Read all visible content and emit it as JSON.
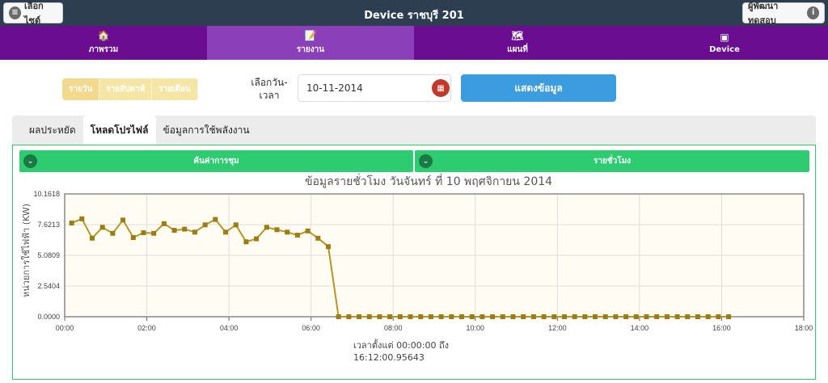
{
  "topbar": {
    "select_site_label": "เลือกไซต์",
    "title": "Device ราชบุรี 201",
    "user_label": "ผู้พัฒนา ทดสอบ"
  },
  "nav": {
    "items": [
      {
        "label": "ภาพรวม",
        "icon": "house-icon"
      },
      {
        "label": "รายงาน",
        "icon": "notepad-icon"
      },
      {
        "label": "แผนที่",
        "icon": "map-icon"
      },
      {
        "label": "Device",
        "icon": "chip-icon"
      }
    ],
    "active_index": 1
  },
  "period": {
    "options": [
      "รายวัน",
      "รายสัปดาห์",
      "รายเดือน"
    ]
  },
  "date_label": "เลือกวัน-เวลา",
  "date_value": "10-11-2014",
  "show_button": "แสดงข้อมูล",
  "tabs": [
    "ผลประหยัด",
    "โหลดโปรไฟล์",
    "ข้อมูลการใช้พลังงาน"
  ],
  "active_tab": 1,
  "accordion": {
    "left": "ค้นค่าการชุม",
    "right": "รายชั่วโมง"
  },
  "colors": {
    "topbar": "#2c3e50",
    "nav": "#6a0d91",
    "nav_active": "#8b3fb8",
    "accent_green": "#2ecc71",
    "series": "#b8961f",
    "button_blue": "#3b9de0"
  },
  "chart_data": {
    "type": "line",
    "title": "ข้อมูลรายชั่วโมง วันจันทร์ ที่ 10 พฤศจิกายน 2014",
    "ylabel": "หน่วยการใช้ไฟฟ้า (KW)",
    "xlabel_line1": "เวลาตั้งแต่ 00:00:00 ถึง",
    "xlabel_line2": "16:12:00.95643",
    "xlim": [
      0,
      18
    ],
    "ylim": [
      0,
      10.1618
    ],
    "x_ticks": [
      "00:00",
      "02:00",
      "04:00",
      "06:00",
      "08:00",
      "10:00",
      "12:00",
      "14:00",
      "16:00",
      "18:00"
    ],
    "y_ticks": [
      "0.0000",
      "2.5404",
      "5.0809",
      "7.6213",
      "10.1618"
    ],
    "y_tick_values": [
      0,
      2.5404,
      5.0809,
      7.6213,
      10.1618
    ],
    "grid": true,
    "x": [
      0.17,
      0.42,
      0.67,
      0.92,
      1.17,
      1.42,
      1.67,
      1.92,
      2.17,
      2.42,
      2.67,
      2.92,
      3.17,
      3.42,
      3.67,
      3.92,
      4.17,
      4.42,
      4.67,
      4.92,
      5.17,
      5.42,
      5.67,
      5.92,
      6.17,
      6.42,
      6.67,
      6.92,
      7.17,
      7.42,
      7.67,
      7.92,
      8.17,
      8.42,
      8.67,
      8.92,
      9.17,
      9.42,
      9.67,
      9.92,
      10.17,
      10.42,
      10.67,
      10.92,
      11.17,
      11.42,
      11.67,
      11.92,
      12.17,
      12.42,
      12.67,
      12.92,
      13.17,
      13.42,
      13.67,
      13.92,
      14.17,
      14.42,
      14.67,
      14.92,
      15.17,
      15.42,
      15.67,
      15.92,
      16.17
    ],
    "values": [
      7.75,
      8.1,
      6.5,
      7.4,
      6.9,
      8.0,
      6.55,
      6.95,
      6.9,
      7.7,
      7.15,
      7.25,
      7.0,
      7.6,
      8.05,
      7.0,
      7.6,
      6.2,
      6.45,
      7.4,
      7.2,
      7.0,
      6.75,
      7.1,
      6.5,
      5.8,
      0,
      0,
      0,
      0,
      0,
      0,
      0,
      0,
      0,
      0,
      0,
      0,
      0,
      0,
      0,
      0,
      0,
      0,
      0,
      0,
      0,
      0,
      0,
      0,
      0,
      0,
      0,
      0,
      0,
      0,
      0,
      0,
      0,
      0,
      0,
      0,
      0,
      0,
      0
    ]
  }
}
